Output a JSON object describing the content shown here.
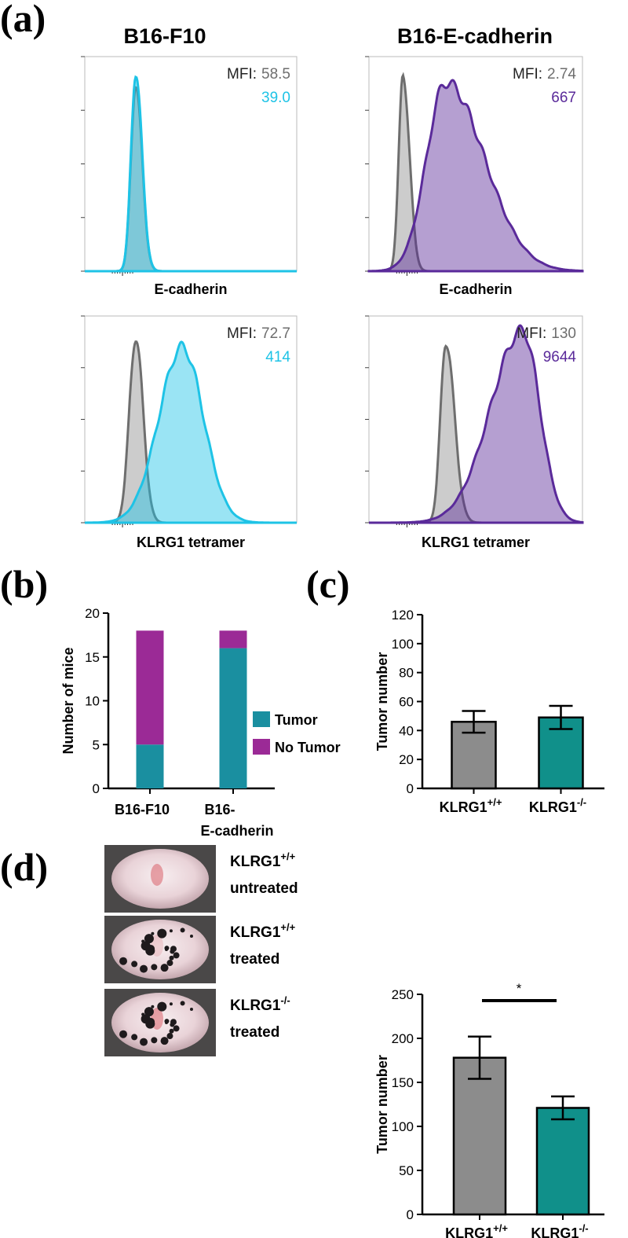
{
  "panel_labels": [
    "(a)",
    "(b)",
    "(c)",
    "(d)"
  ],
  "column_titles": [
    "B16-F10",
    "B16-E-cadherin"
  ],
  "photos": [
    {
      "label": "KLRG1",
      "superscript": "+/+",
      "caption": "untreated"
    },
    {
      "label": "KLRG1",
      "superscript": "+/+",
      "caption": "treated"
    },
    {
      "label": "KLRG1",
      "superscript": "-/-",
      "caption": "treated"
    }
  ],
  "chart_data": [
    {
      "type": "flow-histogram",
      "xlabel": "E-cadherin",
      "mfi_label": "MFI:",
      "series": [
        {
          "color": "#6e6e6e",
          "values": [
            58.5
          ],
          "value_labels": [
            "58.5"
          ]
        },
        {
          "color": "#1ec3e6",
          "values": [
            39.0
          ],
          "value_labels": [
            "39.0"
          ]
        }
      ]
    },
    {
      "type": "flow-histogram",
      "xlabel": "E-cadherin",
      "mfi_label": "MFI:",
      "series": [
        {
          "color": "#6e6e6e",
          "values": [
            2.74
          ],
          "value_labels": [
            "2.74"
          ]
        },
        {
          "color": "#5a2a9a",
          "values": [
            667
          ],
          "value_labels": [
            "667"
          ]
        }
      ]
    },
    {
      "type": "flow-histogram",
      "xlabel": "KLRG1 tetramer",
      "mfi_label": "MFI:",
      "series": [
        {
          "color": "#6e6e6e",
          "values": [
            72.7
          ],
          "value_labels": [
            "72.7"
          ]
        },
        {
          "color": "#1ec3e6",
          "values": [
            414
          ],
          "value_labels": [
            "414"
          ]
        }
      ]
    },
    {
      "type": "flow-histogram",
      "xlabel": "KLRG1 tetramer",
      "mfi_label": "MFI:",
      "series": [
        {
          "color": "#6e6e6e",
          "values": [
            130
          ],
          "value_labels": [
            "130"
          ]
        },
        {
          "color": "#5a2a9a",
          "values": [
            9644
          ],
          "value_labels": [
            "9644"
          ]
        }
      ]
    },
    {
      "type": "stacked-bar",
      "ylabel": "Number of mice",
      "categories": [
        "B16-F10",
        "B16-E-cadherin"
      ],
      "series": [
        {
          "name": "Tumor",
          "color": "#1a8fa0",
          "values": [
            5,
            16
          ]
        },
        {
          "name": "No Tumor",
          "color": "#9b2a96",
          "values": [
            13,
            2
          ]
        }
      ],
      "ylim": [
        0,
        20
      ],
      "yticks": [
        0,
        5,
        10,
        15,
        20
      ]
    },
    {
      "type": "bar",
      "ylabel": "Tumor number",
      "categories": [
        "KLRG1",
        "KLRG1"
      ],
      "category_superscripts": [
        "+/+",
        "-/-"
      ],
      "values": [
        46,
        49
      ],
      "errors": [
        7.5,
        8
      ],
      "colors": [
        "#8c8c8c",
        "#10908a"
      ],
      "ylim": [
        0,
        120
      ],
      "yticks": [
        0,
        20,
        40,
        60,
        80,
        100,
        120
      ]
    },
    {
      "type": "bar",
      "ylabel": "Tumor number",
      "categories": [
        "KLRG1",
        "KLRG1"
      ],
      "category_superscripts": [
        "+/+",
        "-/-"
      ],
      "values": [
        178,
        121
      ],
      "errors": [
        24,
        13
      ],
      "colors": [
        "#8c8c8c",
        "#10908a"
      ],
      "ylim": [
        0,
        250
      ],
      "yticks": [
        0,
        50,
        100,
        150,
        200,
        250
      ],
      "annotation": "*"
    }
  ]
}
